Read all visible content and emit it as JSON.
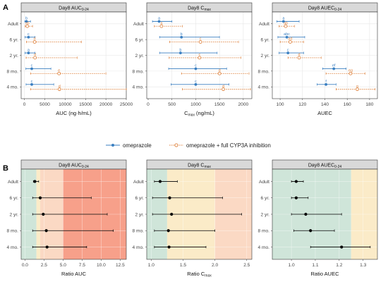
{
  "panel_labels": {
    "a": "A",
    "b": "B"
  },
  "legend": {
    "items": [
      {
        "label": "omeprazole",
        "color": "#3a7fc1",
        "marker": "filled-circle",
        "line": "solid"
      },
      {
        "label": "omeprazole + full CYP3A inhibition",
        "color": "#e08a4a",
        "marker": "open-circle",
        "line": "dotted"
      }
    ]
  },
  "colors": {
    "series1": "#3a7fc1",
    "series2": "#e08a4a",
    "ratio_point": "#000000",
    "band_green": "#cfe5d9",
    "band_yellow": "#fbebc8",
    "band_peach": "#fbd9c4",
    "band_red": "#f7a08a",
    "strip_bg": "#d9d9d9"
  },
  "chart_data": [
    {
      "type": "scatter",
      "panel": "A",
      "title_main": "Day8 AUC",
      "title_sub": "0-24",
      "xlabel": "AUC (ng·h/mL)",
      "xlim": [
        -800,
        25000
      ],
      "xticks": [
        0,
        5000,
        10000,
        15000,
        20000,
        25000
      ],
      "xticklabels": [
        "0",
        "5000",
        "10000",
        "15000",
        "20000",
        "25000"
      ],
      "categories": [
        "Adult",
        "6 yr.",
        "2 yr.",
        "8 mo.",
        "4 mo."
      ],
      "series": [
        {
          "name": "omeprazole",
          "values": [
            500,
            1000,
            1000,
            1800,
            1800
          ],
          "lower": [
            100,
            150,
            150,
            350,
            400
          ],
          "upper": [
            1500,
            2600,
            2600,
            6500,
            7200
          ],
          "labels": [
            "b",
            "c",
            "a",
            "c",
            "c"
          ]
        },
        {
          "name": "omeprazole + full CYP3A inhibition",
          "values": [
            700,
            2500,
            2600,
            8500,
            8600
          ],
          "lower": [
            200,
            500,
            400,
            1500,
            1500
          ],
          "upper": [
            2000,
            14000,
            13000,
            20000,
            25000
          ],
          "labels": [
            "ab",
            "d",
            "d",
            "e",
            "d"
          ]
        }
      ],
      "grid": true
    },
    {
      "type": "scatter",
      "panel": "A",
      "title_main": "Day8 C",
      "title_sub": "max",
      "xlabel": "C",
      "xlabel_sub": "max",
      "xlabel_unit": " (ng/mL)",
      "xlim": [
        -30,
        2180
      ],
      "xticks": [
        0,
        500,
        1000,
        1500,
        2000
      ],
      "xticklabels": [
        "0",
        "500",
        "1000",
        "1500",
        "2000"
      ],
      "categories": [
        "Adult",
        "6 yr.",
        "2 yr.",
        "8 mo.",
        "4 mo."
      ],
      "series": [
        {
          "name": "omeprazole",
          "values": [
            230,
            700,
            680,
            1000,
            1000
          ],
          "lower": [
            90,
            240,
            240,
            430,
            480
          ],
          "upper": [
            500,
            1500,
            1450,
            1650,
            1700
          ],
          "labels": [
            "a",
            "b",
            "b",
            "c",
            "c"
          ]
        },
        {
          "name": "omeprazole + full CYP3A inhibition",
          "values": [
            280,
            1100,
            1080,
            1500,
            1580
          ],
          "lower": [
            130,
            450,
            440,
            700,
            720
          ],
          "upper": [
            720,
            1900,
            1950,
            2120,
            2150
          ],
          "labels": [
            "a",
            "c",
            "c",
            "d",
            "d"
          ]
        }
      ],
      "grid": true
    },
    {
      "type": "scatter",
      "panel": "A",
      "title_main": "Day8 AUEC",
      "title_sub": "0-24",
      "xlabel": "AUEC",
      "xlim": [
        93,
        187
      ],
      "xticks": [
        100,
        120,
        140,
        160,
        180
      ],
      "xticklabels": [
        "100",
        "120",
        "140",
        "160",
        "180"
      ],
      "categories": [
        "Adult",
        "6 yr.",
        "2 yr.",
        "8 mo.",
        "4 mo."
      ],
      "series": [
        {
          "name": "omeprazole",
          "values": [
            103,
            106,
            107,
            148,
            141
          ],
          "lower": [
            97,
            98,
            99,
            138,
            133
          ],
          "upper": [
            117,
            122,
            121,
            159,
            150
          ],
          "labels": [
            "a",
            "abc",
            "c",
            "ef",
            "f"
          ]
        },
        {
          "name": "omeprazole + full CYP3A inhibition",
          "values": [
            105,
            109,
            117,
            163,
            169
          ],
          "lower": [
            99,
            100,
            107,
            141,
            150
          ],
          "upper": [
            113,
            121,
            137,
            176,
            185
          ],
          "labels": [
            "ab",
            "ad",
            "d",
            "eg",
            "g"
          ]
        }
      ],
      "grid": true
    },
    {
      "type": "scatter",
      "panel": "B",
      "title_main": "Day8 AUC",
      "title_sub": "0-24",
      "xlabel": "Ratio AUC",
      "xlim": [
        -0.5,
        13.3
      ],
      "xticks": [
        0.0,
        2.5,
        5.0,
        7.5,
        10.0,
        12.5
      ],
      "xticklabels": [
        "0.0",
        "2.5",
        "5.0",
        "7.5",
        "10.0",
        "12.5"
      ],
      "bands": [
        [
          -0.5,
          1.5,
          "band_green"
        ],
        [
          1.5,
          2.0,
          "band_yellow"
        ],
        [
          2.0,
          5.0,
          "band_peach"
        ],
        [
          5.0,
          13.3,
          "band_red"
        ]
      ],
      "categories": [
        "Adult",
        "6 yr.",
        "2 yr.",
        "8 mo.",
        "4 mo."
      ],
      "series": [
        {
          "name": "",
          "values": [
            1.3,
            2.0,
            2.4,
            2.8,
            2.9
          ],
          "lower": [
            1.1,
            1.0,
            1.0,
            1.0,
            1.0
          ],
          "upper": [
            1.8,
            8.7,
            10.8,
            11.6,
            8.1
          ]
        }
      ],
      "grid": true
    },
    {
      "type": "scatter",
      "panel": "B",
      "title_main": "Day8 C",
      "title_sub": "max",
      "xlabel": "Ratio C",
      "xlabel_sub": "max",
      "xlim": [
        0.93,
        2.58
      ],
      "xticks": [
        1.0,
        1.5,
        2.0,
        2.5
      ],
      "xticklabels": [
        "1.0",
        "1.5",
        "2.0",
        "2.5"
      ],
      "bands": [
        [
          0.93,
          1.25,
          "band_green"
        ],
        [
          1.25,
          2.0,
          "band_yellow"
        ],
        [
          2.0,
          2.58,
          "band_peach"
        ]
      ],
      "categories": [
        "Adult",
        "6 yr.",
        "2 yr.",
        "8 mo.",
        "4 mo."
      ],
      "series": [
        {
          "name": "",
          "values": [
            1.14,
            1.29,
            1.32,
            1.27,
            1.28
          ],
          "lower": [
            1.05,
            1.02,
            1.02,
            1.05,
            1.05
          ],
          "upper": [
            1.41,
            2.12,
            2.42,
            2.0,
            1.86
          ]
        }
      ],
      "grid": true
    },
    {
      "type": "scatter",
      "panel": "B",
      "title_main": "Day8 AUEC",
      "title_sub": "0-24",
      "xlabel": "Ratio AUEC",
      "xlim": [
        0.92,
        1.36
      ],
      "xticks": [
        1.0,
        1.1,
        1.2,
        1.3
      ],
      "xticklabels": [
        "1.0",
        "1.1",
        "1.2",
        "1.3"
      ],
      "bands": [
        [
          0.92,
          1.25,
          "band_green"
        ],
        [
          1.25,
          1.36,
          "band_yellow"
        ]
      ],
      "categories": [
        "Adult",
        "6 yr.",
        "2 yr.",
        "8 mo.",
        "4 mo."
      ],
      "series": [
        {
          "name": "",
          "values": [
            1.02,
            1.02,
            1.06,
            1.08,
            1.21
          ],
          "lower": [
            1.0,
            1.0,
            1.0,
            1.01,
            1.08
          ],
          "upper": [
            1.05,
            1.07,
            1.21,
            1.18,
            1.33
          ]
        }
      ],
      "grid": true
    }
  ]
}
